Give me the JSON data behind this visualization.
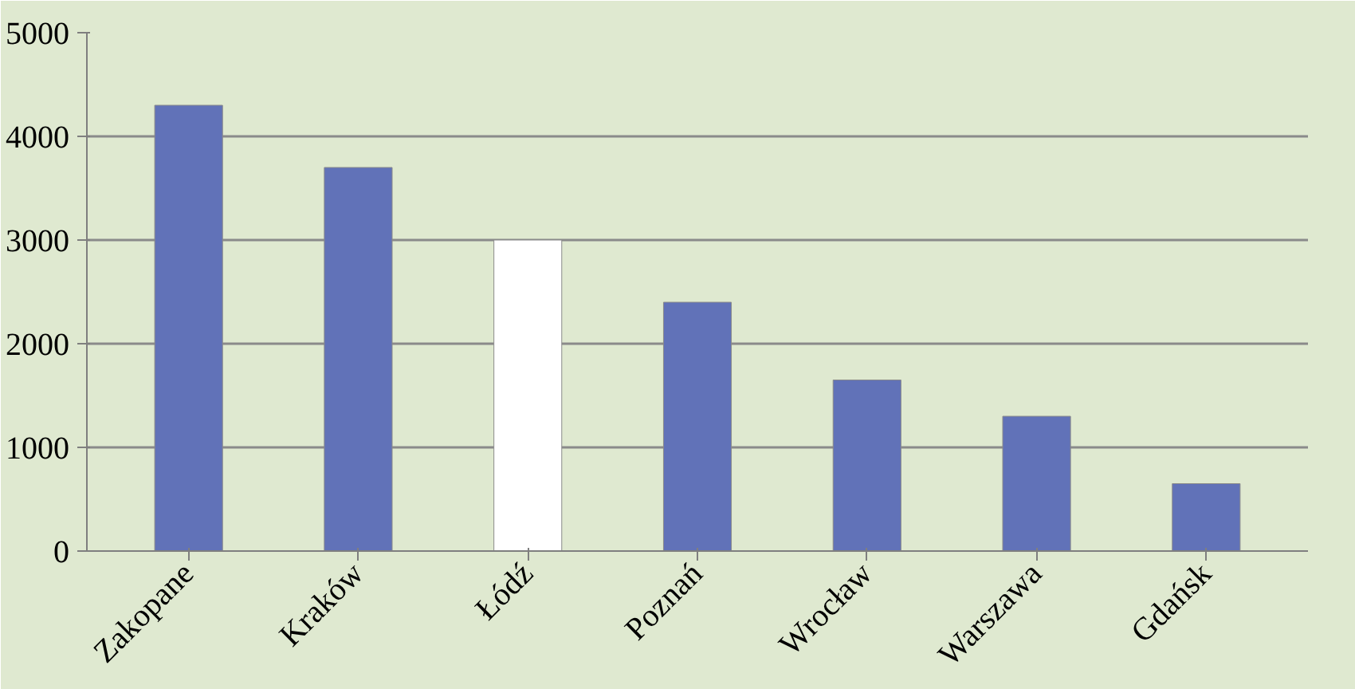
{
  "chart_data": {
    "type": "bar",
    "categories": [
      "Zakopane",
      "Kraków",
      "Łódź",
      "Poznań",
      "Wrocław",
      "Warszawa",
      "Gdańsk"
    ],
    "values": [
      4300,
      3700,
      3000,
      2400,
      1650,
      1300,
      650
    ],
    "colors": [
      "#6172b8",
      "#6172b8",
      "#ffffff",
      "#6172b8",
      "#6172b8",
      "#6172b8",
      "#6172b8"
    ],
    "ylim": [
      0,
      5000
    ],
    "yticks": [
      0,
      1000,
      2000,
      3000,
      4000,
      5000
    ],
    "grid": "y"
  }
}
